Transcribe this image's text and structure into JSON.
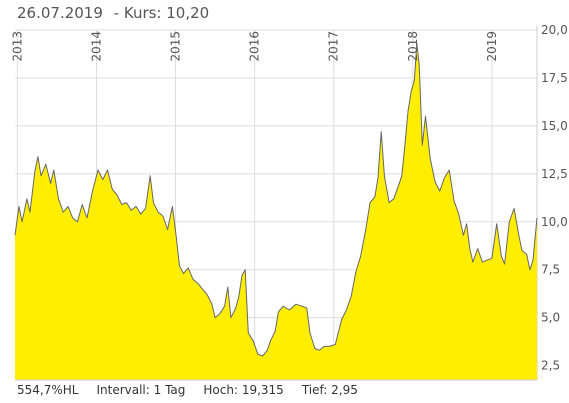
{
  "header": {
    "date": "26.07.2019",
    "kurs": "- Kurs: 10,20"
  },
  "footer": {
    "performance": "554,7%HL",
    "intervall": "Intervall: 1 Tag",
    "hoch": "Hoch: 19,315",
    "tief": "Tief: 2,95"
  },
  "colors": {
    "fill": "#ffee00",
    "line": "#666666",
    "grid": "#dddddd"
  },
  "chart_data": {
    "type": "area",
    "x_ticks": [
      "2013",
      "2014",
      "2015",
      "2016",
      "2017",
      "2018",
      "2019"
    ],
    "y_ticks": [
      "2,5",
      "5,0",
      "7,5",
      "10,0",
      "12,5",
      "15,0",
      "17,5",
      "20,0"
    ],
    "y_tick_values": [
      2.5,
      5.0,
      7.5,
      10.0,
      12.5,
      15.0,
      17.5,
      20.0
    ],
    "ylim": [
      1.75,
      20.0
    ],
    "xlim": [
      2012.97,
      2019.57
    ],
    "y_axis_position": "right",
    "grid": true,
    "points": [
      [
        2012.97,
        9.3
      ],
      [
        2013.02,
        10.8
      ],
      [
        2013.06,
        10.0
      ],
      [
        2013.12,
        11.2
      ],
      [
        2013.16,
        10.5
      ],
      [
        2013.22,
        12.6
      ],
      [
        2013.26,
        13.4
      ],
      [
        2013.3,
        12.4
      ],
      [
        2013.36,
        13.0
      ],
      [
        2013.42,
        12.0
      ],
      [
        2013.46,
        12.7
      ],
      [
        2013.52,
        11.2
      ],
      [
        2013.58,
        10.5
      ],
      [
        2013.64,
        10.8
      ],
      [
        2013.7,
        10.2
      ],
      [
        2013.76,
        10.0
      ],
      [
        2013.82,
        10.9
      ],
      [
        2013.88,
        10.2
      ],
      [
        2013.95,
        11.6
      ],
      [
        2014.02,
        12.7
      ],
      [
        2014.08,
        12.2
      ],
      [
        2014.14,
        12.7
      ],
      [
        2014.2,
        11.7
      ],
      [
        2014.26,
        11.4
      ],
      [
        2014.32,
        10.9
      ],
      [
        2014.38,
        11.0
      ],
      [
        2014.44,
        10.6
      ],
      [
        2014.5,
        10.8
      ],
      [
        2014.56,
        10.4
      ],
      [
        2014.62,
        10.7
      ],
      [
        2014.68,
        12.4
      ],
      [
        2014.72,
        11.0
      ],
      [
        2014.78,
        10.5
      ],
      [
        2014.84,
        10.3
      ],
      [
        2014.9,
        9.6
      ],
      [
        2014.96,
        10.8
      ],
      [
        2015.0,
        9.5
      ],
      [
        2015.05,
        7.7
      ],
      [
        2015.1,
        7.3
      ],
      [
        2015.16,
        7.6
      ],
      [
        2015.22,
        7.0
      ],
      [
        2015.28,
        6.8
      ],
      [
        2015.34,
        6.5
      ],
      [
        2015.4,
        6.2
      ],
      [
        2015.46,
        5.7
      ],
      [
        2015.5,
        5.0
      ],
      [
        2015.56,
        5.2
      ],
      [
        2015.62,
        5.6
      ],
      [
        2015.66,
        6.6
      ],
      [
        2015.7,
        5.0
      ],
      [
        2015.76,
        5.5
      ],
      [
        2015.8,
        6.1
      ],
      [
        2015.84,
        7.2
      ],
      [
        2015.88,
        7.5
      ],
      [
        2015.92,
        4.2
      ],
      [
        2015.98,
        3.8
      ],
      [
        2016.04,
        3.1
      ],
      [
        2016.1,
        3.0
      ],
      [
        2016.16,
        3.3
      ],
      [
        2016.2,
        3.8
      ],
      [
        2016.26,
        4.3
      ],
      [
        2016.3,
        5.3
      ],
      [
        2016.36,
        5.6
      ],
      [
        2016.44,
        5.4
      ],
      [
        2016.52,
        5.7
      ],
      [
        2016.6,
        5.6
      ],
      [
        2016.66,
        5.5
      ],
      [
        2016.7,
        4.2
      ],
      [
        2016.76,
        3.4
      ],
      [
        2016.82,
        3.3
      ],
      [
        2016.88,
        3.5
      ],
      [
        2016.94,
        3.5
      ],
      [
        2017.02,
        3.6
      ],
      [
        2017.1,
        4.9
      ],
      [
        2017.16,
        5.4
      ],
      [
        2017.22,
        6.1
      ],
      [
        2017.28,
        7.4
      ],
      [
        2017.34,
        8.2
      ],
      [
        2017.4,
        9.5
      ],
      [
        2017.46,
        11.0
      ],
      [
        2017.52,
        11.3
      ],
      [
        2017.56,
        12.3
      ],
      [
        2017.6,
        14.7
      ],
      [
        2017.64,
        12.4
      ],
      [
        2017.7,
        11.0
      ],
      [
        2017.76,
        11.2
      ],
      [
        2017.82,
        11.9
      ],
      [
        2017.86,
        12.4
      ],
      [
        2017.9,
        14.0
      ],
      [
        2017.94,
        15.8
      ],
      [
        2017.98,
        16.8
      ],
      [
        2018.02,
        17.4
      ],
      [
        2018.05,
        19.3
      ],
      [
        2018.08,
        18.2
      ],
      [
        2018.12,
        14.0
      ],
      [
        2018.16,
        15.5
      ],
      [
        2018.22,
        13.3
      ],
      [
        2018.28,
        12.1
      ],
      [
        2018.34,
        11.6
      ],
      [
        2018.4,
        12.3
      ],
      [
        2018.46,
        12.7
      ],
      [
        2018.52,
        11.1
      ],
      [
        2018.58,
        10.4
      ],
      [
        2018.64,
        9.3
      ],
      [
        2018.68,
        9.9
      ],
      [
        2018.72,
        8.6
      ],
      [
        2018.76,
        7.9
      ],
      [
        2018.82,
        8.6
      ],
      [
        2018.88,
        7.9
      ],
      [
        2018.94,
        8.0
      ],
      [
        2019.0,
        8.1
      ],
      [
        2019.06,
        9.9
      ],
      [
        2019.12,
        8.2
      ],
      [
        2019.16,
        7.8
      ],
      [
        2019.22,
        10.0
      ],
      [
        2019.28,
        10.7
      ],
      [
        2019.34,
        9.3
      ],
      [
        2019.38,
        8.5
      ],
      [
        2019.44,
        8.3
      ],
      [
        2019.48,
        7.5
      ],
      [
        2019.52,
        8.0
      ],
      [
        2019.57,
        10.2
      ]
    ]
  }
}
